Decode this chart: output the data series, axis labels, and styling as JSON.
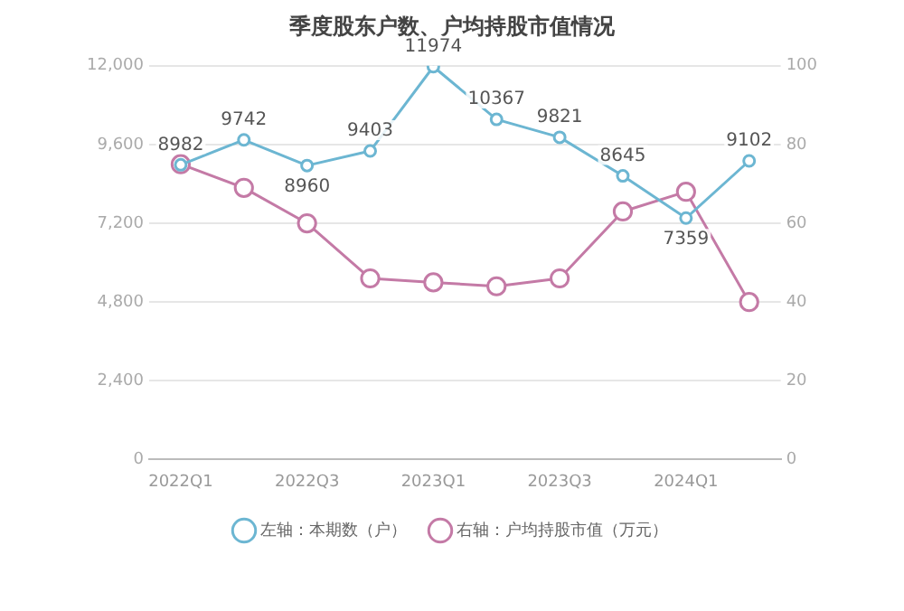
{
  "chart_data": {
    "type": "line",
    "title": "季度股东户数、户均持股市值情况",
    "categories": [
      "2022Q1",
      null,
      "2022Q3",
      null,
      "2023Q1",
      null,
      "2023Q3",
      null,
      "2024Q1",
      null
    ],
    "series": [
      {
        "name": "左轴：本期数（户）",
        "color": "#6cb6d2",
        "values": [
          8982,
          9742,
          8960,
          9403,
          11974,
          10367,
          9821,
          8645,
          7359,
          9102
        ],
        "value_labels": [
          "8982",
          "9742",
          "8960",
          "9403",
          "11974",
          "10367",
          "9821",
          "8645",
          "7359",
          "9102"
        ]
      },
      {
        "name": "右轴：户均持股市值（万元）",
        "color": "#c47aa6",
        "axis": "y2",
        "values": [
          75,
          69,
          60,
          46,
          45,
          44,
          46,
          63,
          68,
          40
        ]
      }
    ],
    "ylim": [
      0,
      12000
    ],
    "yticks": [
      {
        "value": 0,
        "label": "0"
      },
      {
        "value": 2400,
        "label": "2,400"
      },
      {
        "value": 4800,
        "label": "4,800"
      },
      {
        "value": 7200,
        "label": "7,200"
      },
      {
        "value": 9600,
        "label": "9,600"
      },
      {
        "value": 12000,
        "label": "12,000"
      }
    ],
    "y2lim": [
      0,
      100
    ],
    "y2ticks": [
      0,
      20,
      40,
      60,
      80,
      100
    ],
    "grid": "y",
    "legend": "bottom",
    "marker": "circle",
    "line_style": "solid"
  }
}
